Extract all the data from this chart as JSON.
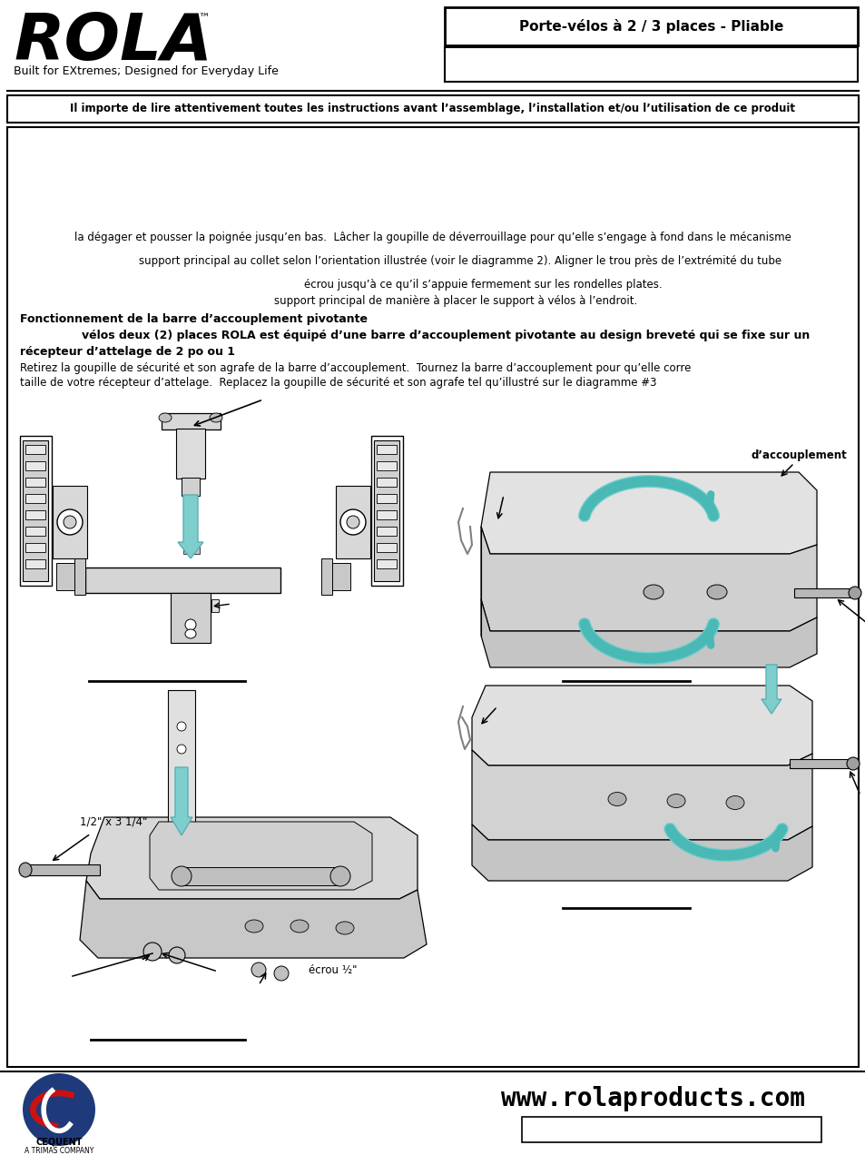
{
  "bg_color": "#ffffff",
  "title_box_text": "Porte-vélos à 2 / 3 places - Pliable",
  "logo_text": "ROLA",
  "logo_subtitle": "Built for EXtremes; Designed for Everyday Life",
  "warning_text": "Il importe de lire attentivement toutes les instructions avant l’assemblage, l’installation et/ou l’utilisation de ce produit",
  "line1": "la dégager et pousser la poignée jusqu’en bas.  Lâcher la goupille de déverrouillage pour qu’elle s’engage à fond dans le mécanisme",
  "line2": "support principal au collet selon l’orientation illustrée (voir le diagramme 2). Aligner le trou près de l’extrémité du tube",
  "line3": "écrou jusqu’à ce qu’il s’appuie fermement sur les rondelles plates.",
  "line4": "support principal de manière à placer le support à vélos à l’endroit.",
  "heading1": "Fonctionnement de la barre d’accouplement pivotante",
  "bold1": "        vélos deux (2) places ROLA est équipé d’une barre d’accouplement pivotante au design breveté qui se fixe sur un",
  "bold2": "récepteur d’attelage de 2 po ou 1",
  "para1": "Retirez la goupille de sécurité et son agrafe de la barre d’accouplement.  Tournez la barre d’accouplement pour qu’elle corre",
  "para2": "taille de votre récepteur d’attelage.  Replacez la goupille de sécurité et son agrafe tel qu’illustré sur le diagramme #3",
  "label_accouplement": "d’accouplement",
  "label_size": "1/2\" x 3 1/4\"",
  "label_ecrou": "écrou ½\"",
  "website": "www.rolaproducts.com",
  "cequent_text": "CEQUENT",
  "cequent_sub": "A TRIMAS COMPANY"
}
